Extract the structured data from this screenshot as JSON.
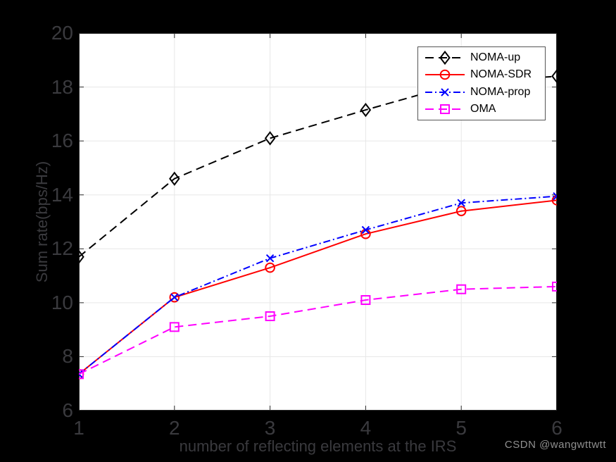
{
  "watermark": "CSDN @wangwttwtt",
  "colors": {
    "figure_background": "#000000",
    "plot_background": "#ffffff",
    "grid_color": "#e7e7e7",
    "axis_color": "#2b2b2b",
    "tick_label_color": "#3a3a3e",
    "axis_label_color": "#3a3a3e",
    "legend_background": "#ffffff",
    "legend_border": "#555555",
    "legend_text": "#000000",
    "watermark_color": "#8f8f8f"
  },
  "chart_data": {
    "type": "line",
    "xlabel": "number of reflecting elements at the IRS",
    "ylabel": "Sum rate(bps/Hz)",
    "xlim": [
      1,
      6
    ],
    "ylim": [
      6,
      20
    ],
    "x_ticks": [
      1,
      2,
      3,
      4,
      5,
      6
    ],
    "y_ticks": [
      6,
      8,
      10,
      12,
      14,
      16,
      18,
      20
    ],
    "grid": true,
    "legend_position": "top-right",
    "x": [
      1,
      2,
      3,
      4,
      5,
      6
    ],
    "series": [
      {
        "name": "NOMA-up",
        "color": "#000000",
        "line_style": "dashed",
        "marker": "diamond",
        "values": [
          11.7,
          14.6,
          16.1,
          17.15,
          18.15,
          18.4
        ]
      },
      {
        "name": "NOMA-SDR",
        "color": "#ff0000",
        "line_style": "solid",
        "marker": "circle",
        "values": [
          7.35,
          10.2,
          11.3,
          12.55,
          13.4,
          13.8
        ]
      },
      {
        "name": "NOMA-prop",
        "color": "#0000ff",
        "line_style": "dashdot",
        "marker": "x",
        "values": [
          7.35,
          10.2,
          11.65,
          12.7,
          13.7,
          13.95
        ]
      },
      {
        "name": "OMA",
        "color": "#ff00ff",
        "line_style": "dashed",
        "marker": "square",
        "values": [
          7.35,
          9.1,
          9.5,
          10.1,
          10.5,
          10.6
        ]
      }
    ]
  }
}
